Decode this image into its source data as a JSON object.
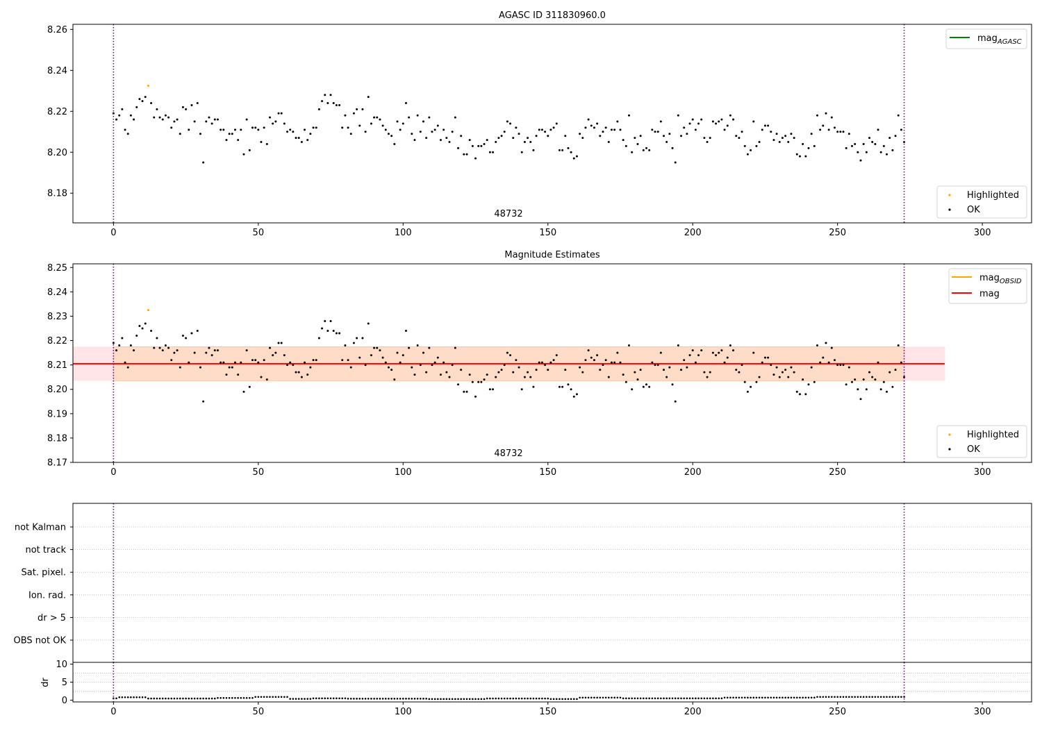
{
  "colors": {
    "axis": "#000000",
    "points_ok": "#000000",
    "points_highlighted": "#ffa500",
    "mag_agasc_line": "#008000",
    "mag_obsid_line": "#ffa500",
    "mag_line": "#ff0000",
    "band_outer": "#ffe4e8",
    "band_inner": "#ffdcc8",
    "obs_boundary": "#800080",
    "grid": "#b0b0b0"
  },
  "chart_data": [
    {
      "type": "scatter",
      "title": "AGASC ID 311830960.0",
      "xlabel": "",
      "ylabel": "",
      "xlim": [
        -14,
        317
      ],
      "ylim": [
        8.1655,
        8.2625
      ],
      "xticks": [
        0,
        50,
        100,
        150,
        200,
        250,
        300
      ],
      "yticks": [
        8.18,
        8.2,
        8.22,
        8.24,
        8.26
      ],
      "ytick_labels": [
        "8.18",
        "8.20",
        "8.22",
        "8.24",
        "8.26"
      ],
      "obsid_annotation": "48732",
      "obs_boundaries": [
        0,
        273
      ],
      "legend_lines": [
        {
          "label": "mag",
          "subscript": "AGASC",
          "color": "#008000"
        }
      ],
      "legend_points": [
        {
          "label": "Highlighted",
          "color": "#ffa500"
        },
        {
          "label": "OK",
          "color": "#000000"
        }
      ],
      "series": [
        {
          "name": "Highlighted",
          "points": [
            [
              12,
              8.2325
            ]
          ]
        },
        {
          "name": "OK",
          "values_ref": "mag_series"
        }
      ]
    },
    {
      "type": "scatter",
      "title": "Magnitude Estimates",
      "xlabel": "",
      "ylabel": "",
      "xlim": [
        -14,
        317
      ],
      "ylim": [
        8.17,
        8.2515
      ],
      "xticks": [
        0,
        50,
        100,
        150,
        200,
        250,
        300
      ],
      "yticks": [
        8.17,
        8.18,
        8.19,
        8.2,
        8.21,
        8.22,
        8.23,
        8.24,
        8.25
      ],
      "ytick_labels": [
        "8.17",
        "8.18",
        "8.19",
        "8.20",
        "8.21",
        "8.22",
        "8.23",
        "8.24",
        "8.25"
      ],
      "obsid_annotation": "48732",
      "obs_boundaries": [
        0,
        273
      ],
      "mag_level": 8.2105,
      "mag_band": [
        8.2035,
        8.2175
      ],
      "band_x": [
        -14,
        287
      ],
      "legend_lines": [
        {
          "label": "mag",
          "subscript": "OBSID",
          "color": "#ffa500"
        },
        {
          "label": "mag",
          "subscript": "",
          "color": "#ff0000"
        }
      ],
      "legend_points": [
        {
          "label": "Highlighted",
          "color": "#ffa500"
        },
        {
          "label": "OK",
          "color": "#000000"
        }
      ],
      "series": [
        {
          "name": "Highlighted",
          "points": [
            [
              12,
              8.2325
            ]
          ]
        },
        {
          "name": "OK",
          "values_ref": "mag_series"
        }
      ]
    },
    {
      "type": "table",
      "title": "",
      "flag_labels": [
        "not Kalman",
        "not track",
        "Sat. pixel.",
        "Ion. rad.",
        "dr > 5",
        "OBS not OK"
      ],
      "obs_boundaries": [
        0,
        273
      ]
    },
    {
      "type": "scatter",
      "title": "",
      "xlabel": "",
      "ylabel": "dr",
      "xlim": [
        -14,
        317
      ],
      "ylim": [
        -0.5,
        10.5
      ],
      "xticks": [
        0,
        50,
        100,
        150,
        200,
        250,
        300
      ],
      "yticks": [
        0,
        5,
        10
      ],
      "ytick_labels": [
        "0",
        "5",
        "10"
      ],
      "obs_boundaries": [
        0,
        273
      ],
      "dr_segments": [
        {
          "from": 0,
          "to": 1,
          "value": 0.5
        },
        {
          "from": 2,
          "to": 11,
          "value": 0.8
        },
        {
          "from": 12,
          "to": 35,
          "value": 0.45
        },
        {
          "from": 36,
          "to": 48,
          "value": 0.6
        },
        {
          "from": 49,
          "to": 60,
          "value": 0.9
        },
        {
          "from": 61,
          "to": 68,
          "value": 0.35
        },
        {
          "from": 69,
          "to": 80,
          "value": 0.5
        },
        {
          "from": 81,
          "to": 108,
          "value": 0.4
        },
        {
          "from": 109,
          "to": 128,
          "value": 0.3
        },
        {
          "from": 129,
          "to": 150,
          "value": 0.45
        },
        {
          "from": 151,
          "to": 160,
          "value": 0.3
        },
        {
          "from": 161,
          "to": 175,
          "value": 0.7
        },
        {
          "from": 176,
          "to": 210,
          "value": 0.5
        },
        {
          "from": 211,
          "to": 242,
          "value": 0.7
        },
        {
          "from": 243,
          "to": 273,
          "value": 0.9
        }
      ]
    }
  ],
  "mag_series": {
    "x": [
      0,
      1,
      2,
      3,
      4,
      5,
      6,
      7,
      8,
      9,
      10,
      11,
      13,
      14,
      15,
      16,
      17,
      18,
      19,
      20,
      21,
      22,
      23,
      24,
      25,
      26,
      27,
      28,
      29,
      30,
      31,
      32,
      33,
      34,
      35,
      36,
      37,
      38,
      39,
      40,
      41,
      42,
      43,
      44,
      45,
      46,
      47,
      48,
      49,
      50,
      51,
      52,
      53,
      54,
      55,
      56,
      57,
      58,
      59,
      60,
      61,
      62,
      63,
      64,
      65,
      66,
      67,
      68,
      69,
      70,
      71,
      72,
      73,
      74,
      75,
      76,
      77,
      78,
      79,
      80,
      81,
      82,
      83,
      84,
      85,
      86,
      87,
      88,
      89,
      90,
      91,
      92,
      93,
      94,
      95,
      96,
      97,
      98,
      99,
      100,
      101,
      102,
      103,
      104,
      105,
      106,
      107,
      108,
      109,
      110,
      111,
      112,
      113,
      114,
      115,
      116,
      117,
      118,
      119,
      120,
      121,
      122,
      123,
      124,
      125,
      126,
      127,
      128,
      129,
      130,
      131,
      132,
      133,
      134,
      135,
      136,
      137,
      138,
      139,
      140,
      141,
      142,
      143,
      144,
      145,
      146,
      147,
      148,
      149,
      150,
      151,
      152,
      153,
      154,
      155,
      156,
      157,
      158,
      159,
      160,
      161,
      162,
      163,
      164,
      165,
      166,
      167,
      168,
      169,
      170,
      171,
      172,
      173,
      174,
      175,
      176,
      177,
      178,
      179,
      180,
      181,
      182,
      183,
      184,
      185,
      186,
      187,
      188,
      189,
      190,
      191,
      192,
      193,
      194,
      195,
      196,
      197,
      198,
      199,
      200,
      201,
      202,
      203,
      204,
      205,
      206,
      207,
      208,
      209,
      210,
      211,
      212,
      213,
      214,
      215,
      216,
      217,
      218,
      219,
      220,
      221,
      222,
      223,
      224,
      225,
      226,
      227,
      228,
      229,
      230,
      231,
      232,
      233,
      234,
      235,
      236,
      237,
      238,
      239,
      240,
      241,
      242,
      243,
      244,
      245,
      246,
      247,
      248,
      249,
      250,
      251,
      252,
      253,
      254,
      255,
      256,
      257,
      258,
      259,
      260,
      261,
      262,
      263,
      264,
      265,
      266,
      267,
      268,
      269,
      270,
      271,
      272,
      273
    ],
    "y": [
      8.219,
      8.216,
      8.218,
      8.221,
      8.211,
      8.209,
      8.218,
      8.216,
      8.222,
      8.226,
      8.225,
      8.227,
      8.224,
      8.217,
      8.221,
      8.217,
      8.216,
      8.218,
      8.217,
      8.212,
      8.215,
      8.216,
      8.209,
      8.222,
      8.221,
      8.211,
      8.223,
      8.215,
      8.224,
      8.209,
      8.195,
      8.215,
      8.217,
      8.214,
      8.216,
      8.216,
      8.211,
      8.211,
      8.206,
      8.209,
      8.209,
      8.211,
      8.206,
      8.211,
      8.199,
      8.216,
      8.201,
      8.212,
      8.212,
      8.211,
      8.205,
      8.212,
      8.204,
      8.217,
      8.214,
      8.215,
      8.219,
      8.219,
      8.214,
      8.21,
      8.211,
      8.21,
      8.207,
      8.207,
      8.205,
      8.211,
      8.206,
      8.209,
      8.212,
      8.212,
      8.221,
      8.225,
      8.228,
      8.224,
      8.228,
      8.224,
      8.223,
      8.223,
      8.212,
      8.218,
      8.212,
      8.209,
      8.219,
      8.221,
      8.213,
      8.221,
      8.21,
      8.227,
      8.214,
      8.217,
      8.217,
      8.216,
      8.213,
      8.211,
      8.209,
      8.208,
      8.204,
      8.215,
      8.211,
      8.214,
      8.224,
      8.217,
      8.209,
      8.206,
      8.218,
      8.21,
      8.215,
      8.207,
      8.217,
      8.21,
      8.211,
      8.213,
      8.206,
      8.211,
      8.207,
      8.205,
      8.21,
      8.217,
      8.202,
      8.208,
      8.199,
      8.199,
      8.206,
      8.203,
      8.197,
      8.203,
      8.203,
      8.204,
      8.206,
      8.2,
      8.2,
      8.205,
      8.207,
      8.208,
      8.21,
      8.215,
      8.214,
      8.207,
      8.212,
      8.209,
      8.2,
      8.205,
      8.207,
      8.205,
      8.201,
      8.208,
      8.211,
      8.211,
      8.21,
      8.208,
      8.211,
      8.212,
      8.214,
      8.201,
      8.201,
      8.208,
      8.202,
      8.2,
      8.197,
      8.198,
      8.209,
      8.207,
      8.212,
      8.216,
      8.213,
      8.212,
      8.214,
      8.208,
      8.21,
      8.212,
      8.205,
      8.211,
      8.211,
      8.215,
      8.211,
      8.206,
      8.203,
      8.218,
      8.2,
      8.207,
      8.204,
      8.208,
      8.201,
      8.202,
      8.201,
      8.211,
      8.21,
      8.21,
      8.215,
      8.208,
      8.205,
      8.209,
      8.202,
      8.195,
      8.218,
      8.208,
      8.212,
      8.209,
      8.214,
      8.216,
      8.211,
      8.214,
      8.216,
      8.207,
      8.205,
      8.207,
      8.215,
      8.214,
      8.215,
      8.216,
      8.211,
      8.213,
      8.218,
      8.216,
      8.208,
      8.207,
      8.21,
      8.203,
      8.199,
      8.201,
      8.215,
      8.203,
      8.205,
      8.211,
      8.213,
      8.213,
      8.21,
      8.206,
      8.209,
      8.205,
      8.207,
      8.208,
      8.205,
      8.209,
      8.207,
      8.199,
      8.198,
      8.204,
      8.198,
      8.202,
      8.209,
      8.203,
      8.218,
      8.211,
      8.213,
      8.219,
      8.211,
      8.217,
      8.212,
      8.21,
      8.21,
      8.21,
      8.202,
      8.209,
      8.203,
      8.204,
      8.2,
      8.196,
      8.204,
      8.2,
      8.207,
      8.205,
      8.204,
      8.211,
      8.2,
      8.203,
      8.199,
      8.207,
      8.201,
      8.208,
      8.218,
      8.211,
      8.205
    ]
  }
}
